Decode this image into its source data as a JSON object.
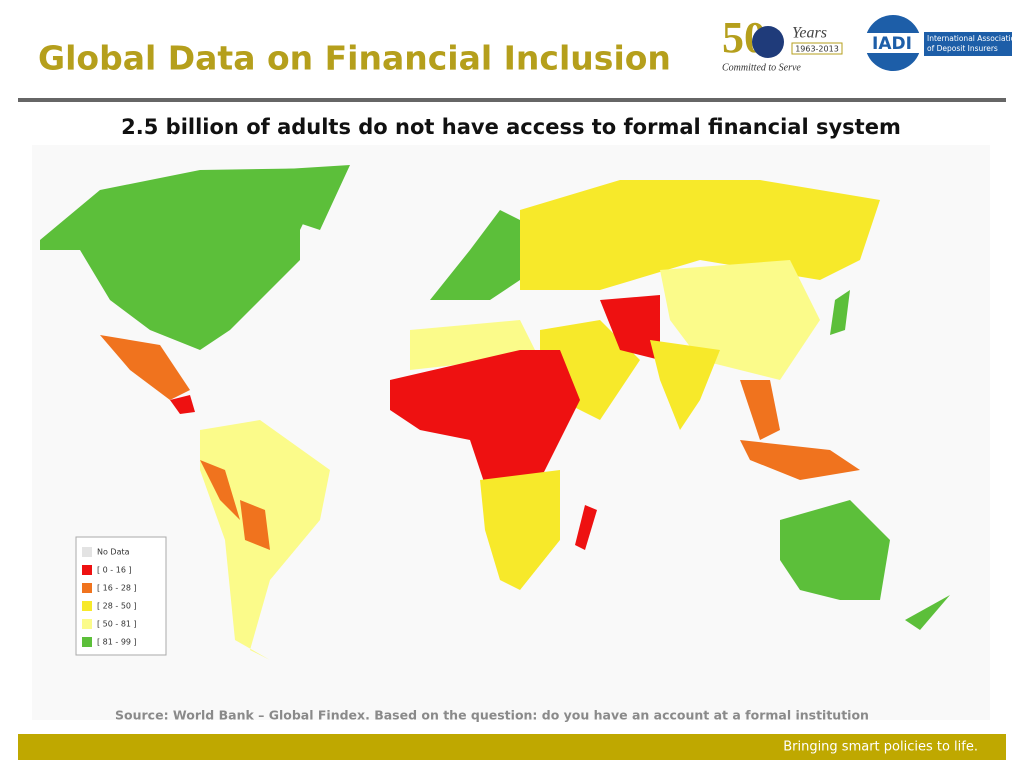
{
  "header": {
    "title": "Global Data on Financial Inclusion",
    "logo_anniversary": {
      "number": "50",
      "years": "Years",
      "span": "1963-2013",
      "motto": "Committed to Serve"
    },
    "logo_iadi": {
      "acronym": "IADI",
      "name_line1": "International Association",
      "name_line2": "of Deposit Insurers"
    }
  },
  "subtitle": "2.5 billion of adults do not have access to formal financial system",
  "legend": {
    "items": [
      {
        "label": "No Data",
        "color": "#e3e3e3"
      },
      {
        "label": "[ 0 - 16 ]",
        "color": "#ee1111"
      },
      {
        "label": "[ 16 - 28 ]",
        "color": "#f0731e"
      },
      {
        "label": "[ 28 - 50 ]",
        "color": "#f7e92a"
      },
      {
        "label": "[ 50 - 81 ]",
        "color": "#fbfb8a"
      },
      {
        "label": "[ 81 - 99 ]",
        "color": "#5cbf3a"
      }
    ]
  },
  "source": "Source: World Bank – Global Findex. Based on the question: do you have an account at a formal institution",
  "footer": {
    "tagline": "Bringing smart policies to life."
  }
}
